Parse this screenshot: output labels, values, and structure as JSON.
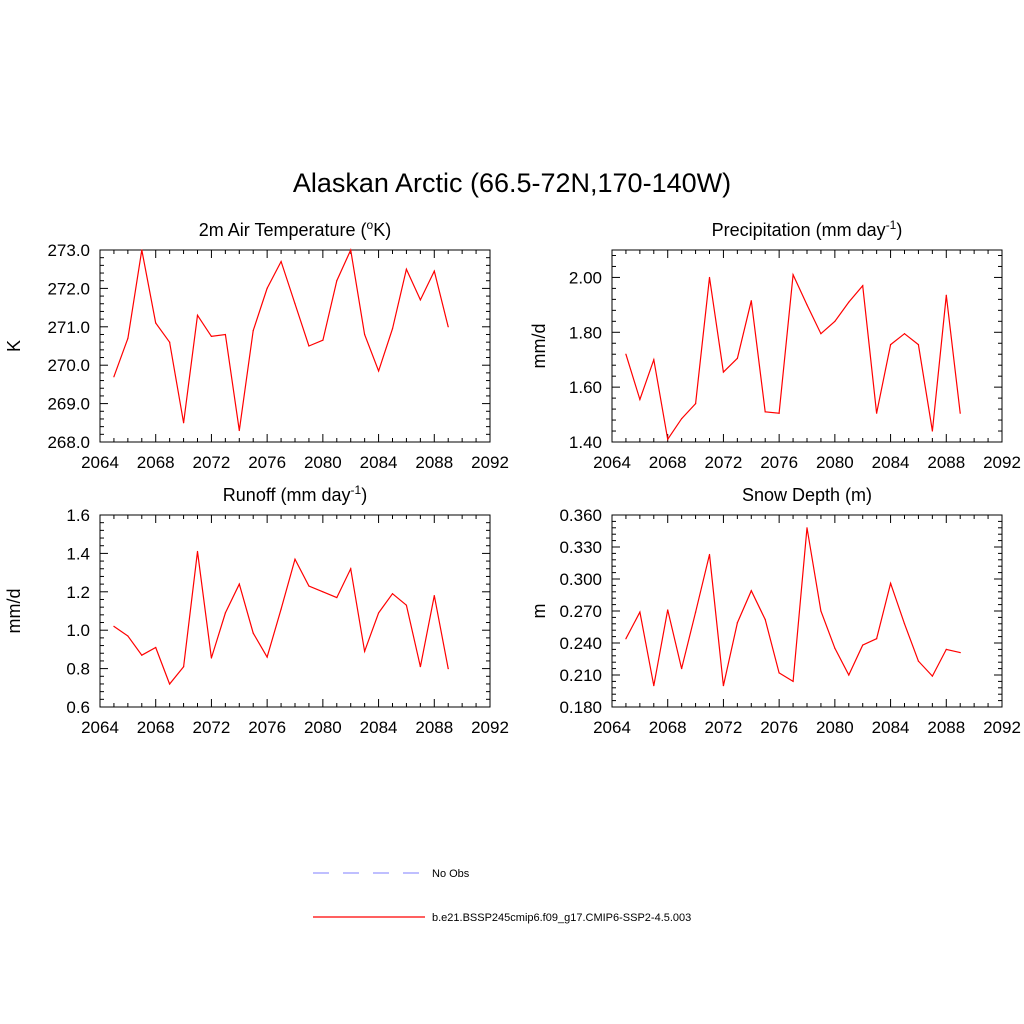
{
  "title": "Alaskan Arctic (66.5-72N,170-140W)",
  "series_color": "#ff0000",
  "obs_color": "#9999ff",
  "legend": [
    {
      "label": "No Obs",
      "style": "dashed"
    },
    {
      "label": "b.e21.BSSP245cmip6.f09_g17.CMIP6-SSP2-4.5.003",
      "style": "solid"
    }
  ],
  "chart_data": [
    {
      "type": "line",
      "title_main": "2m Air Temperature (",
      "title_sup": "o",
      "title_end": "K)",
      "ylabel": "K",
      "xlim": [
        2064,
        2092
      ],
      "xticks": [
        "2064",
        "2068",
        "2072",
        "2076",
        "2080",
        "2084",
        "2088",
        "2092"
      ],
      "ylim": [
        268.0,
        273.0
      ],
      "yticks": [
        "268.0",
        "269.0",
        "270.0",
        "271.0",
        "272.0",
        "273.0"
      ],
      "x": [
        2065,
        2066,
        2067,
        2068,
        2069,
        2070,
        2071,
        2072,
        2073,
        2074,
        2075,
        2076,
        2077,
        2078,
        2079,
        2080,
        2081,
        2082,
        2083,
        2084,
        2085,
        2086,
        2087,
        2088,
        2089
      ],
      "values": [
        269.7,
        270.7,
        273.0,
        271.1,
        270.6,
        268.5,
        271.3,
        270.75,
        270.8,
        268.3,
        270.9,
        272.0,
        272.7,
        271.6,
        270.5,
        270.65,
        272.2,
        273.0,
        270.8,
        269.85,
        270.95,
        272.5,
        271.7,
        272.45,
        271.0
      ]
    },
    {
      "type": "line",
      "title_main": "Precipitation (mm day",
      "title_sup": "-1",
      "title_end": ")",
      "ylabel": "mm/d",
      "xlim": [
        2064,
        2092
      ],
      "xticks": [
        "2064",
        "2068",
        "2072",
        "2076",
        "2080",
        "2084",
        "2088",
        "2092"
      ],
      "ylim": [
        1.4,
        2.1
      ],
      "yticks": [
        "1.40",
        "1.60",
        "1.80",
        "2.00"
      ],
      "x": [
        2065,
        2066,
        2067,
        2068,
        2069,
        2070,
        2071,
        2072,
        2073,
        2074,
        2075,
        2076,
        2077,
        2078,
        2079,
        2080,
        2081,
        2082,
        2083,
        2084,
        2085,
        2086,
        2087,
        2088,
        2089
      ],
      "values": [
        1.72,
        1.555,
        1.7,
        1.41,
        1.485,
        1.54,
        2.0,
        1.655,
        1.705,
        1.915,
        1.51,
        1.505,
        2.01,
        1.9,
        1.795,
        1.84,
        1.91,
        1.97,
        1.505,
        1.755,
        1.795,
        1.755,
        1.44,
        1.935,
        1.505
      ]
    },
    {
      "type": "line",
      "title_main": "Runoff (mm day",
      "title_sup": "-1",
      "title_end": ")",
      "ylabel": "mm/d",
      "xlim": [
        2064,
        2092
      ],
      "xticks": [
        "2064",
        "2068",
        "2072",
        "2076",
        "2080",
        "2084",
        "2088",
        "2092"
      ],
      "ylim": [
        0.6,
        1.6
      ],
      "yticks": [
        "0.6",
        "0.8",
        "1.0",
        "1.2",
        "1.4",
        "1.6"
      ],
      "x": [
        2065,
        2066,
        2067,
        2068,
        2069,
        2070,
        2071,
        2072,
        2073,
        2074,
        2075,
        2076,
        2077,
        2078,
        2079,
        2080,
        2081,
        2082,
        2083,
        2084,
        2085,
        2086,
        2087,
        2088,
        2089
      ],
      "values": [
        1.02,
        0.97,
        0.87,
        0.91,
        0.72,
        0.81,
        1.41,
        0.855,
        1.09,
        1.24,
        0.985,
        0.86,
        1.11,
        1.37,
        1.23,
        1.2,
        1.17,
        1.32,
        0.89,
        1.09,
        1.19,
        1.13,
        0.81,
        1.18,
        0.8
      ]
    },
    {
      "type": "line",
      "title_main": "Snow Depth (m)",
      "title_sup": "",
      "title_end": "",
      "ylabel": "m",
      "xlim": [
        2064,
        2092
      ],
      "xticks": [
        "2064",
        "2068",
        "2072",
        "2076",
        "2080",
        "2084",
        "2088",
        "2092"
      ],
      "ylim": [
        0.18,
        0.36
      ],
      "yticks": [
        "0.180",
        "0.210",
        "0.240",
        "0.270",
        "0.300",
        "0.330",
        "0.360"
      ],
      "x": [
        2065,
        2066,
        2067,
        2068,
        2069,
        2070,
        2071,
        2072,
        2073,
        2074,
        2075,
        2076,
        2077,
        2078,
        2079,
        2080,
        2081,
        2082,
        2083,
        2084,
        2085,
        2086,
        2087,
        2088,
        2089
      ],
      "values": [
        0.244,
        0.269,
        0.2,
        0.271,
        0.216,
        0.269,
        0.323,
        0.2,
        0.259,
        0.289,
        0.262,
        0.212,
        0.204,
        0.348,
        0.27,
        0.235,
        0.21,
        0.238,
        0.244,
        0.296,
        0.258,
        0.223,
        0.209,
        0.234,
        0.231
      ]
    }
  ]
}
